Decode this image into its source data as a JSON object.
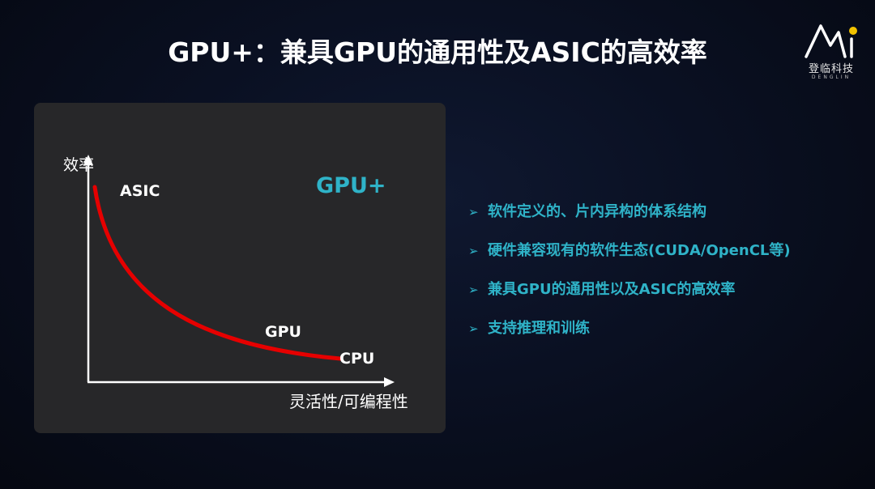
{
  "slide": {
    "title": "GPU+：兼具GPU的通用性及ASIC的高效率"
  },
  "logo": {
    "name": "登临科技",
    "sub": "DENGLIN"
  },
  "diagram": {
    "y_axis_label": "效率",
    "x_axis_label": "灵活性/可编程性",
    "highlight_label": "GPU+",
    "curve_color": "#e60000",
    "highlight_color": "#2fb3c8",
    "points": [
      {
        "label": "ASIC"
      },
      {
        "label": "GPU"
      },
      {
        "label": "CPU"
      }
    ]
  },
  "bullets": {
    "marker": "➢",
    "items": [
      "软件定义的、片内异构的体系结构",
      "硬件兼容现有的软件生态(CUDA/OpenCL等)",
      "兼具GPU的通用性以及ASIC的高效率",
      "支持推理和训练"
    ]
  }
}
